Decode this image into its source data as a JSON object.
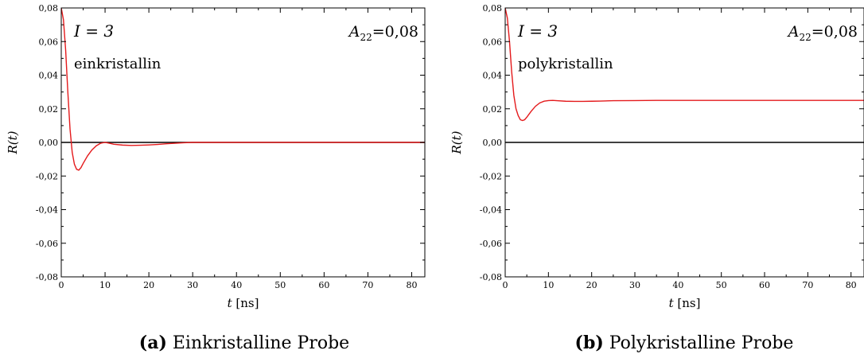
{
  "chart_data": [
    {
      "type": "line",
      "panel_label": "(a)",
      "caption": "Einkristalline Probe",
      "xlabel_var": "t",
      "xlabel_unit": "[ns]",
      "ylabel": "R(t)",
      "xlim": [
        0,
        83
      ],
      "ylim": [
        -0.08,
        0.08
      ],
      "x_ticks": [
        0,
        10,
        20,
        30,
        40,
        50,
        60,
        70,
        80
      ],
      "x_tick_labels": [
        "0",
        "10",
        "20",
        "30",
        "40",
        "50",
        "60",
        "70",
        "80"
      ],
      "y_ticks": [
        -0.08,
        -0.06,
        -0.04,
        -0.02,
        0.0,
        0.02,
        0.04,
        0.06,
        0.08
      ],
      "y_tick_labels": [
        "-0,08",
        "-0,06",
        "-0,04",
        "-0,02",
        "0,00",
        "0,02",
        "0,04",
        "0,06",
        "0,08"
      ],
      "annotations": {
        "spin": "I = 3",
        "sample": "einkristallin",
        "a22_symbol": "A",
        "a22_sub": "22",
        "a22_value": "=0,08"
      },
      "zero_line": true,
      "grid": false,
      "series": [
        {
          "color": "#e41a1c",
          "x": [
            0,
            0.5,
            1,
            1.5,
            2,
            2.5,
            3,
            3.5,
            4,
            4.5,
            5,
            6,
            7,
            8,
            9,
            10,
            11,
            12,
            14,
            16,
            18,
            20,
            22,
            24,
            26,
            28,
            30,
            35,
            40,
            50,
            60,
            70,
            83
          ],
          "y": [
            0.08,
            0.073,
            0.055,
            0.03,
            0.008,
            -0.006,
            -0.013,
            -0.016,
            -0.0165,
            -0.015,
            -0.0125,
            -0.008,
            -0.0045,
            -0.002,
            -0.0005,
            0.0,
            -0.0005,
            -0.0011,
            -0.0016,
            -0.0018,
            -0.0017,
            -0.0015,
            -0.0012,
            -0.0008,
            -0.0005,
            -0.0002,
            0.0,
            0.0,
            0.0,
            0.0,
            0.0,
            0.0,
            0.0
          ]
        }
      ]
    },
    {
      "type": "line",
      "panel_label": "(b)",
      "caption": "Polykristalline Probe",
      "xlabel_var": "t",
      "xlabel_unit": "[ns]",
      "ylabel": "R(t)",
      "xlim": [
        0,
        83
      ],
      "ylim": [
        -0.08,
        0.08
      ],
      "x_ticks": [
        0,
        10,
        20,
        30,
        40,
        50,
        60,
        70,
        80
      ],
      "x_tick_labels": [
        "0",
        "10",
        "20",
        "30",
        "40",
        "50",
        "60",
        "70",
        "80"
      ],
      "y_ticks": [
        -0.08,
        -0.06,
        -0.04,
        -0.02,
        0.0,
        0.02,
        0.04,
        0.06,
        0.08
      ],
      "y_tick_labels": [
        "-0,08",
        "-0,06",
        "-0,04",
        "-0,02",
        "0,00",
        "0,02",
        "0,04",
        "0,06",
        "0,08"
      ],
      "annotations": {
        "spin": "I = 3",
        "sample": "polykristallin",
        "a22_symbol": "A",
        "a22_sub": "22",
        "a22_value": "=0,08"
      },
      "zero_line": true,
      "grid": false,
      "series": [
        {
          "color": "#e41a1c",
          "x": [
            0,
            0.5,
            1,
            1.5,
            2,
            2.5,
            3,
            3.5,
            4,
            4.5,
            5,
            6,
            7,
            8,
            9,
            10,
            11,
            12,
            14,
            16,
            18,
            20,
            22,
            25,
            30,
            35,
            40,
            50,
            60,
            70,
            83
          ],
          "y": [
            0.08,
            0.074,
            0.06,
            0.042,
            0.028,
            0.02,
            0.016,
            0.0135,
            0.013,
            0.0135,
            0.015,
            0.0185,
            0.0215,
            0.0235,
            0.0245,
            0.0249,
            0.025,
            0.0248,
            0.0245,
            0.0244,
            0.0244,
            0.0245,
            0.0246,
            0.0248,
            0.0249,
            0.025,
            0.025,
            0.025,
            0.025,
            0.025,
            0.025
          ]
        }
      ]
    }
  ]
}
